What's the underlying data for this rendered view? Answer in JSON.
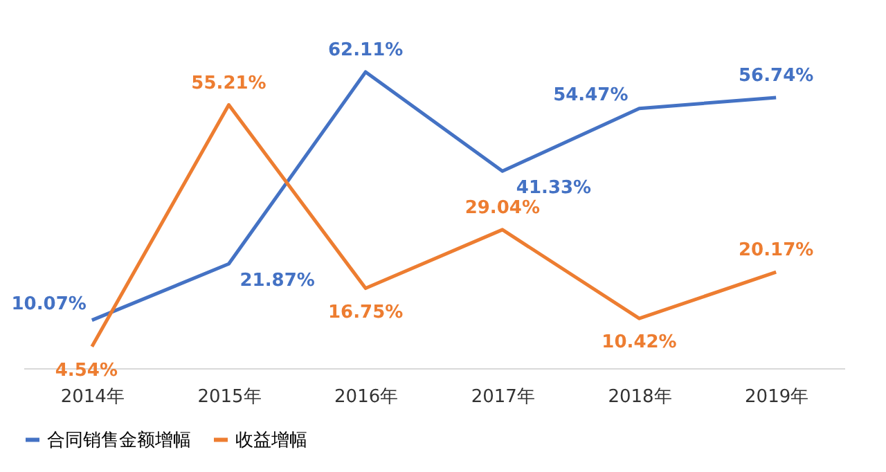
{
  "chart_data": {
    "type": "line",
    "categories": [
      "2014年",
      "2015年",
      "2016年",
      "2017年",
      "2018年",
      "2019年"
    ],
    "series": [
      {
        "name": "合同销售金额增幅",
        "color": "#4472c4",
        "values": [
          10.07,
          21.87,
          62.11,
          41.33,
          54.47,
          56.74
        ],
        "value_labels": [
          "10.07%",
          "21.87%",
          "62.11%",
          "41.33%",
          "54.47%",
          "56.74%"
        ]
      },
      {
        "name": "收益增幅",
        "color": "#ed7d31",
        "values": [
          4.54,
          55.21,
          16.75,
          29.04,
          10.42,
          20.17
        ],
        "value_labels": [
          "4.54%",
          "55.21%",
          "16.75%",
          "29.04%",
          "10.42%",
          "20.17%"
        ]
      }
    ],
    "legend": "bottom",
    "grid": false,
    "marker": "none",
    "line_style": "solid"
  }
}
